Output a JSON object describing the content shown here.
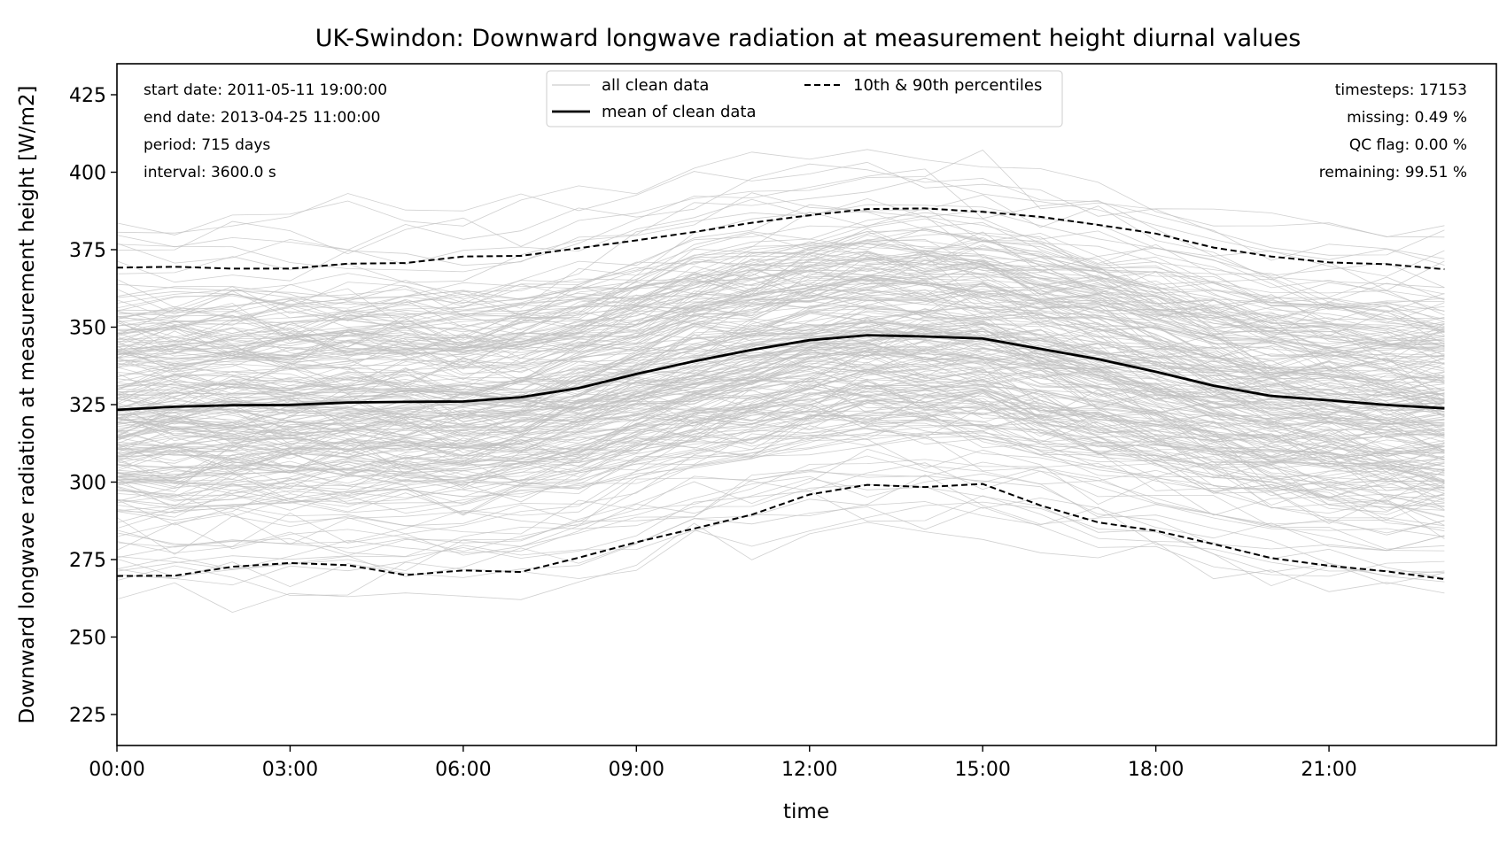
{
  "chart_data": {
    "type": "line",
    "title": "UK-Swindon: Downward longwave radiation at measurement height diurnal values",
    "xlabel": "time",
    "ylabel": "Downward longwave radiation at measurement height [W/m2]",
    "xlim": [
      0,
      23.9
    ],
    "ylim": [
      215,
      435
    ],
    "x_ticks": [
      0,
      3,
      6,
      9,
      12,
      15,
      18,
      21
    ],
    "x_tick_labels": [
      "00:00",
      "03:00",
      "06:00",
      "09:00",
      "12:00",
      "15:00",
      "18:00",
      "21:00"
    ],
    "y_ticks": [
      225,
      250,
      275,
      300,
      325,
      350,
      375,
      400,
      425
    ],
    "y_tick_labels": [
      "225",
      "250",
      "275",
      "300",
      "325",
      "350",
      "375",
      "400",
      "425"
    ],
    "grid": false,
    "legend_position": "top-center",
    "legend": [
      {
        "label": "all clean data",
        "style": "thin-grey"
      },
      {
        "label": "mean of clean data",
        "style": "solid-black"
      },
      {
        "label": "10th & 90th percentiles",
        "style": "dashed-black"
      }
    ],
    "x": [
      0,
      1,
      2,
      3,
      4,
      5,
      6,
      7,
      8,
      9,
      10,
      11,
      12,
      13,
      14,
      15,
      16,
      17,
      18,
      19,
      20,
      21,
      22,
      23
    ],
    "series": [
      {
        "name": "mean of clean data",
        "style": "solid",
        "color": "#000000",
        "values": [
          323.3,
          324.3,
          324.8,
          324.9,
          325.7,
          325.9,
          326.0,
          327.4,
          330.3,
          334.9,
          339.0,
          342.7,
          345.8,
          347.4,
          347.0,
          346.3,
          343.0,
          339.7,
          335.6,
          331.1,
          327.8,
          326.4,
          324.9,
          323.8
        ]
      },
      {
        "name": "90th percentile",
        "style": "dashed",
        "color": "#000000",
        "values": [
          369.2,
          369.5,
          368.9,
          368.9,
          370.5,
          370.7,
          372.8,
          373.0,
          375.5,
          378.0,
          380.7,
          383.7,
          386.1,
          388.1,
          388.3,
          387.2,
          385.6,
          383.0,
          380.2,
          375.7,
          372.8,
          370.9,
          370.3,
          368.7
        ]
      },
      {
        "name": "10th percentile",
        "style": "dashed",
        "color": "#000000",
        "values": [
          269.7,
          269.8,
          272.7,
          273.9,
          273.2,
          270.0,
          271.5,
          271.0,
          275.6,
          280.6,
          285.0,
          289.5,
          296.0,
          299.1,
          298.4,
          299.4,
          292.5,
          287.0,
          284.3,
          280.0,
          275.5,
          273.0,
          271.2,
          268.7
        ]
      }
    ],
    "background_series": {
      "name": "all clean data",
      "color": "#c0c0c0",
      "description_count": 715
    },
    "annotations_left": [
      "start date: 2011-05-11 19:00:00",
      "end date: 2013-04-25 11:00:00",
      "period: 715 days",
      "interval: 3600.0 s"
    ],
    "annotations_right": [
      "timesteps: 17153",
      "missing: 0.49 %",
      "QC flag: 0.00 %",
      "remaining: 99.51 %"
    ]
  }
}
